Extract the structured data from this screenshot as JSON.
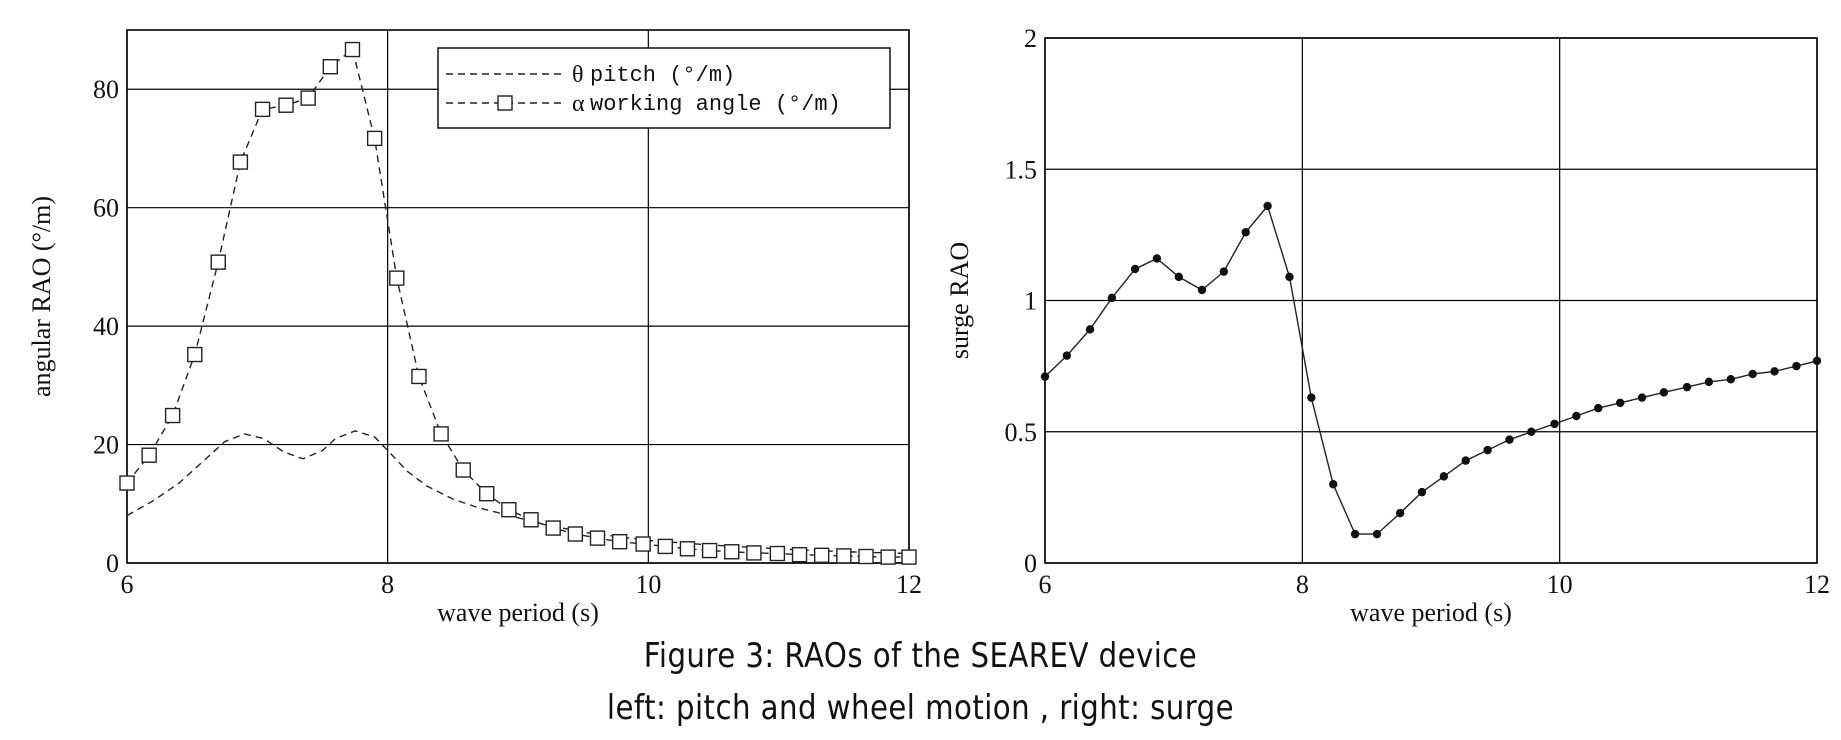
{
  "caption": {
    "line1": "Figure 3: RAOs of the SEAREV device",
    "line2": "left: pitch and wheel motion  ,  right: surge"
  },
  "chart_data": [
    {
      "type": "line",
      "xlabel": "wave period (s)",
      "ylabel": "angular RAO (°/m)",
      "xlim": [
        6,
        12
      ],
      "ylim": [
        0,
        90
      ],
      "xticks": [
        "6",
        "8",
        "10",
        "12"
      ],
      "yticks": [
        "0",
        "20",
        "40",
        "60",
        "80"
      ],
      "grid": true,
      "legend_position": "top-right",
      "series": [
        {
          "symbol": "θ",
          "name": "pitch (°/m)",
          "style": "dashed",
          "marker": "none",
          "x": [
            6.0,
            6.2,
            6.4,
            6.6,
            6.75,
            6.9,
            7.05,
            7.2,
            7.35,
            7.5,
            7.6,
            7.75,
            7.9,
            8.0,
            8.15,
            8.3,
            8.5,
            8.7,
            8.9,
            9.2,
            9.5,
            10.0,
            10.5,
            11.0,
            11.5,
            12.0
          ],
          "values": [
            8,
            10.5,
            13.5,
            17.5,
            20.5,
            21.8,
            21.0,
            18.8,
            17.6,
            19.0,
            21.0,
            22.3,
            21.3,
            19.0,
            15.5,
            13.0,
            10.8,
            9.3,
            8.2,
            6.5,
            5.2,
            3.8,
            3.0,
            2.4,
            1.9,
            1.6
          ]
        },
        {
          "symbol": "α",
          "name": "working angle (°/m)",
          "style": "dashed",
          "marker": "square",
          "x": [
            6.0,
            6.17,
            6.35,
            6.52,
            6.7,
            6.87,
            7.04,
            7.22,
            7.39,
            7.56,
            7.73,
            7.9,
            8.07,
            8.24,
            8.41,
            8.58,
            8.76,
            8.93,
            9.1,
            9.27,
            9.44,
            9.61,
            9.78,
            9.96,
            10.13,
            10.3,
            10.47,
            10.64,
            10.81,
            10.99,
            11.16,
            11.33,
            11.5,
            11.67,
            11.84,
            12.0
          ],
          "values": [
            13.5,
            18.2,
            24.9,
            35.2,
            50.8,
            67.7,
            76.6,
            77.3,
            78.5,
            83.8,
            86.7,
            71.7,
            48.1,
            31.5,
            21.8,
            15.7,
            11.7,
            9.0,
            7.3,
            5.9,
            4.9,
            4.2,
            3.6,
            3.2,
            2.8,
            2.4,
            2.1,
            1.9,
            1.7,
            1.6,
            1.4,
            1.3,
            1.2,
            1.1,
            1.0,
            1.0
          ]
        }
      ]
    },
    {
      "type": "line",
      "xlabel": "wave period (s)",
      "ylabel": "surge RAO",
      "xlim": [
        6,
        12
      ],
      "ylim": [
        0,
        2
      ],
      "xticks": [
        "6",
        "8",
        "10",
        "12"
      ],
      "yticks": [
        "0",
        "0.5",
        "1",
        "1.5",
        "2"
      ],
      "grid": true,
      "series": [
        {
          "style": "solid",
          "marker": "filled-circle",
          "x": [
            6.0,
            6.17,
            6.35,
            6.52,
            6.7,
            6.87,
            7.04,
            7.22,
            7.39,
            7.56,
            7.73,
            7.9,
            8.07,
            8.24,
            8.41,
            8.58,
            8.76,
            8.93,
            9.1,
            9.27,
            9.44,
            9.61,
            9.78,
            9.96,
            10.13,
            10.3,
            10.47,
            10.64,
            10.81,
            10.99,
            11.16,
            11.33,
            11.5,
            11.67,
            11.84,
            12.0
          ],
          "values": [
            0.71,
            0.79,
            0.89,
            1.01,
            1.12,
            1.16,
            1.09,
            1.04,
            1.11,
            1.26,
            1.36,
            1.09,
            0.63,
            0.3,
            0.11,
            0.11,
            0.19,
            0.27,
            0.33,
            0.39,
            0.43,
            0.47,
            0.5,
            0.53,
            0.56,
            0.59,
            0.61,
            0.63,
            0.65,
            0.67,
            0.69,
            0.7,
            0.72,
            0.73,
            0.75,
            0.77
          ]
        }
      ]
    }
  ]
}
